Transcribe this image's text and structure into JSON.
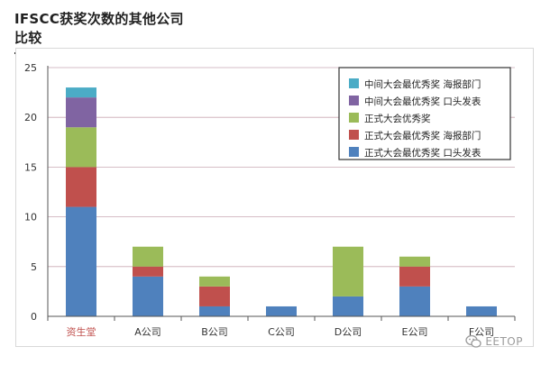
{
  "heading": "IFSCC获奖次数的其他公司比较",
  "watermark": "EETOP",
  "chart_data": {
    "type": "bar",
    "stacked": true,
    "title": "IFSCC获奖次数的其他公司比较",
    "categories": [
      "资生堂",
      "A公司",
      "B公司",
      "C公司",
      "D公司",
      "E公司",
      "F公司"
    ],
    "highlight_category_color": "#c0504d",
    "ylim": [
      0,
      25
    ],
    "yticks": [
      0,
      5,
      10,
      15,
      20,
      25
    ],
    "grid": true,
    "legend_position": "top-right",
    "series": [
      {
        "name": "正式大会最优秀奖 口头发表",
        "color": "#4f81bd",
        "values": [
          11,
          4,
          1,
          1,
          2,
          3,
          1
        ]
      },
      {
        "name": "正式大会最优秀奖 海报部门",
        "color": "#c0504d",
        "values": [
          4,
          1,
          2,
          0,
          0,
          2,
          0
        ]
      },
      {
        "name": "正式大会优秀奖",
        "color": "#9bbb59",
        "values": [
          4,
          2,
          1,
          0,
          5,
          1,
          0
        ]
      },
      {
        "name": "中间大会最优秀奖 口头发表",
        "color": "#8064a2",
        "values": [
          3,
          0,
          0,
          0,
          0,
          0,
          0
        ]
      },
      {
        "name": "中间大会最优秀奖 海报部门",
        "color": "#4bacc6",
        "values": [
          1,
          0,
          0,
          0,
          0,
          0,
          0
        ]
      }
    ]
  }
}
